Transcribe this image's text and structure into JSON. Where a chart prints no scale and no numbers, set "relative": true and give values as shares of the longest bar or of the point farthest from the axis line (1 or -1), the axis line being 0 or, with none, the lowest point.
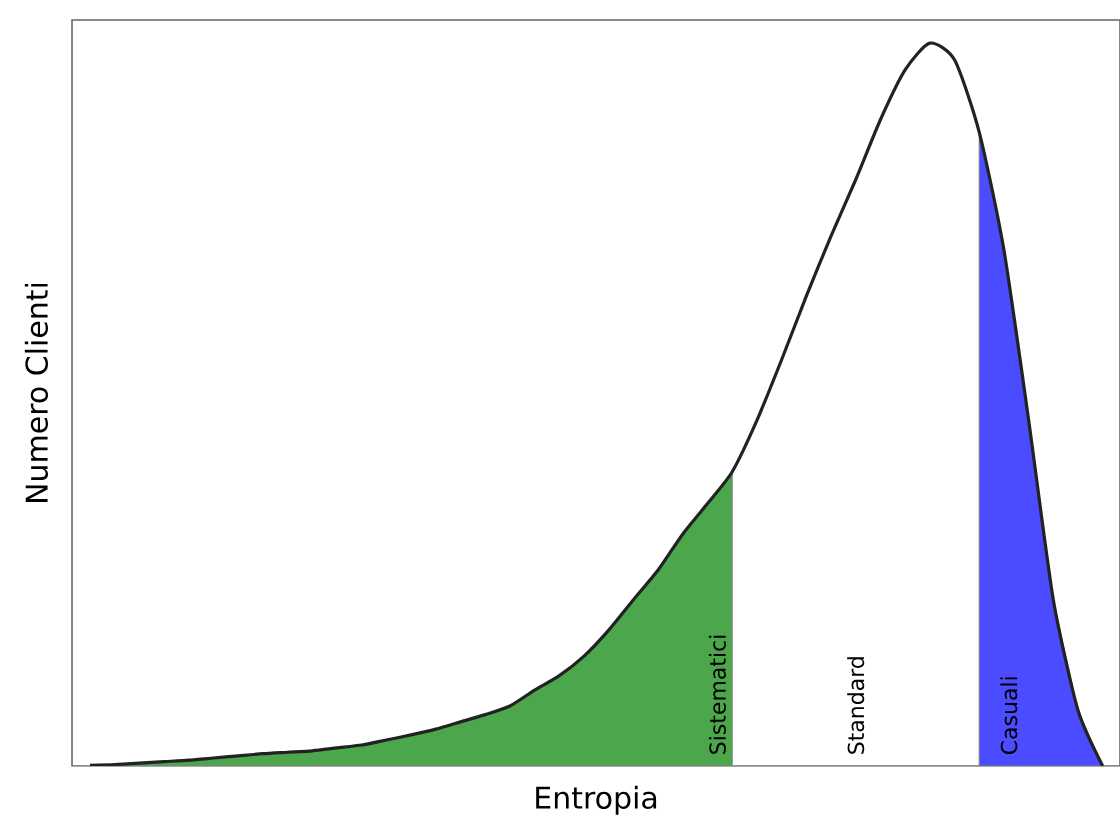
{
  "chart_data": {
    "type": "line",
    "relative": true,
    "xlabel": "Entropia",
    "ylabel": "Numero Clienti",
    "categories": [
      null,
      null,
      null,
      null,
      null,
      null,
      null,
      null,
      null,
      null,
      null,
      null,
      null,
      null,
      null,
      null,
      null,
      null,
      null,
      null,
      null,
      null,
      null,
      null,
      null,
      null,
      null,
      null,
      null,
      null,
      null,
      null,
      null,
      null,
      null,
      null,
      null,
      null,
      null,
      null,
      null,
      null
    ],
    "series": [
      {
        "type": "area",
        "color": "#4ca64c",
        "values": [
          0.001,
          0.002,
          0.004,
          0.006,
          0.008,
          0.011,
          0.014,
          0.017,
          0.019,
          0.021,
          0.025,
          0.029,
          0.036,
          0.043,
          0.051,
          0.061,
          0.071,
          0.083,
          0.105,
          0.125,
          0.152,
          0.188,
          0.23,
          0.271,
          0.321,
          0.363,
          0.407,
          null,
          null,
          null,
          null,
          null,
          null,
          null,
          null,
          null,
          null,
          null,
          null,
          null,
          null,
          null
        ]
      },
      {
        "type": "area",
        "color": "#4b4bff",
        "values": [
          null,
          null,
          null,
          null,
          null,
          null,
          null,
          null,
          null,
          null,
          null,
          null,
          null,
          null,
          null,
          null,
          null,
          null,
          null,
          null,
          null,
          null,
          null,
          null,
          null,
          null,
          null,
          null,
          null,
          null,
          null,
          null,
          null,
          null,
          null,
          null,
          0.877,
          0.714,
          0.479,
          0.23,
          0.077,
          0
        ]
      },
      {
        "color": "#222222",
        "values": [
          0.001,
          0.002,
          0.004,
          0.006,
          0.008,
          0.011,
          0.014,
          0.017,
          0.019,
          0.021,
          0.025,
          0.029,
          0.036,
          0.043,
          0.051,
          0.061,
          0.071,
          0.083,
          0.105,
          0.125,
          0.152,
          0.188,
          0.23,
          0.271,
          0.321,
          0.363,
          0.407,
          0.478,
          0.562,
          0.65,
          0.733,
          0.811,
          0.894,
          0.963,
          1,
          0.977,
          0.877,
          0.714,
          0.479,
          0.23,
          0.077,
          0
        ]
      }
    ],
    "annotations": [
      "Sistematici",
      "Standard",
      "Casuali"
    ],
    "marker": "none",
    "line_style": "solid"
  }
}
